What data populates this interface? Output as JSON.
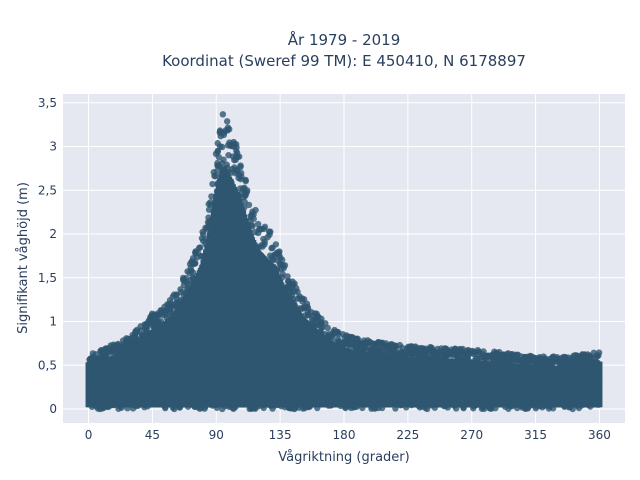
{
  "chart_data": {
    "type": "scatter",
    "title_lines": [
      "År 1979 - 2019",
      "Koordinat (Sweref 99 TM): E 450410, N 6178897"
    ],
    "xlabel": "Vågriktning (grader)",
    "ylabel": "Signifikant våghöjd (m)",
    "xlim": [
      -18,
      378
    ],
    "ylim": [
      -0.16,
      3.6
    ],
    "x_ticks": [
      0,
      45,
      90,
      135,
      180,
      225,
      270,
      315,
      360
    ],
    "x_tick_labels": [
      "0",
      "45",
      "90",
      "135",
      "180",
      "225",
      "270",
      "315",
      "360"
    ],
    "y_ticks": [
      0,
      0.5,
      1,
      1.5,
      2,
      2.5,
      3,
      3.5
    ],
    "y_tick_labels": [
      "0",
      "0,5",
      "1",
      "1,5",
      "2",
      "2,5",
      "3",
      "3,5"
    ],
    "grid": true,
    "marker_color": "#2e5670",
    "plot_background": "#e5e8f0",
    "envelope": {
      "description": "approximate maximum wave height per direction",
      "x": [
        0,
        10,
        20,
        30,
        40,
        45,
        50,
        60,
        70,
        80,
        85,
        90,
        95,
        100,
        105,
        110,
        115,
        120,
        130,
        135,
        140,
        150,
        160,
        170,
        180,
        190,
        200,
        225,
        250,
        270,
        290,
        315,
        330,
        345,
        360
      ],
      "y": [
        0.65,
        0.7,
        0.75,
        0.85,
        1.0,
        1.1,
        1.15,
        1.3,
        1.6,
        2.0,
        2.4,
        3.0,
        3.4,
        3.2,
        3.0,
        2.7,
        2.4,
        2.2,
        2.0,
        1.8,
        1.6,
        1.3,
        1.1,
        0.95,
        0.85,
        0.8,
        0.78,
        0.72,
        0.7,
        0.68,
        0.65,
        0.6,
        0.6,
        0.62,
        0.66
      ]
    }
  }
}
